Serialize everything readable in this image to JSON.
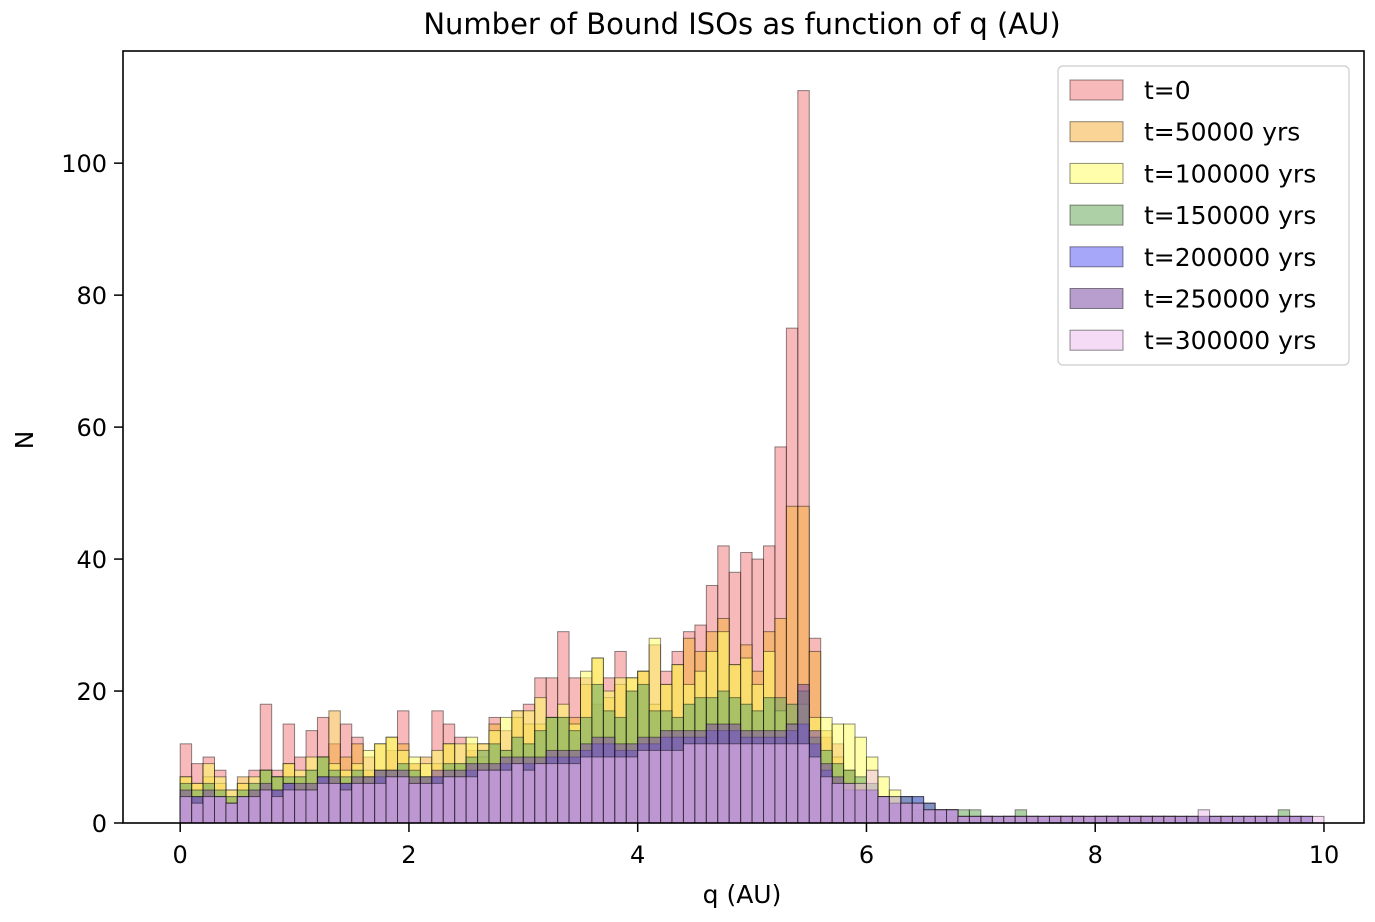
{
  "chart_data": {
    "type": "bar",
    "title": "Number of Bound ISOs as function of q (AU)",
    "xlabel": "q (AU)",
    "ylabel": "N",
    "xlim": [
      -0.5,
      10.35
    ],
    "ylim": [
      0,
      117
    ],
    "xticks": [
      0,
      2,
      4,
      6,
      8,
      10
    ],
    "yticks": [
      0,
      20,
      40,
      60,
      80,
      100
    ],
    "grid": false,
    "legend_position": "top-right",
    "bin_start": 0,
    "bin_width": 0.1,
    "series": [
      {
        "name": "t=0",
        "color": "#f08080",
        "values": [
          12,
          9,
          10,
          8,
          5,
          6,
          8,
          18,
          8,
          15,
          10,
          14,
          16,
          12,
          15,
          13,
          10,
          8,
          11,
          17,
          9,
          7,
          17,
          15,
          13,
          11,
          12,
          16,
          14,
          17,
          18,
          22,
          22,
          29,
          22,
          22,
          18,
          22,
          26,
          20,
          23,
          27,
          23,
          26,
          29,
          30,
          36,
          42,
          38,
          41,
          40,
          42,
          57,
          75,
          111,
          28,
          13,
          12,
          8,
          6,
          5,
          4,
          3,
          3,
          2,
          2,
          1,
          1,
          1,
          1,
          1,
          0,
          1,
          1,
          1,
          0,
          1,
          1,
          1,
          0,
          1,
          1,
          1,
          1,
          1,
          1,
          1,
          0,
          0,
          0,
          0,
          0,
          0,
          0,
          0,
          0,
          0,
          0,
          0,
          0
        ]
      },
      {
        "name": "t=50000 yrs",
        "color": "#f5b041",
        "values": [
          7,
          6,
          7,
          6,
          4,
          7,
          5,
          8,
          7,
          9,
          7,
          8,
          10,
          17,
          10,
          12,
          8,
          12,
          13,
          12,
          9,
          10,
          9,
          12,
          9,
          12,
          10,
          15,
          11,
          16,
          15,
          15,
          16,
          16,
          16,
          21,
          25,
          19,
          21,
          22,
          23,
          18,
          21,
          24,
          28,
          26,
          29,
          31,
          24,
          27,
          23,
          29,
          31,
          48,
          48,
          26,
          14,
          10,
          8,
          6,
          5,
          4,
          3,
          3,
          2,
          2,
          1,
          1,
          1,
          1,
          1,
          0,
          1,
          1,
          1,
          0,
          1,
          1,
          1,
          0,
          1,
          1,
          1,
          1,
          1,
          1,
          1,
          0,
          0,
          0,
          0,
          0,
          0,
          0,
          0,
          0,
          0,
          0,
          0,
          0
        ]
      },
      {
        "name": "t=100000 yrs",
        "color": "#ffff66",
        "values": [
          7,
          6,
          9,
          7,
          5,
          6,
          7,
          8,
          7,
          9,
          8,
          10,
          10,
          9,
          8,
          9,
          11,
          12,
          13,
          11,
          10,
          9,
          11,
          12,
          12,
          13,
          12,
          14,
          16,
          17,
          17,
          19,
          16,
          18,
          15,
          23,
          25,
          20,
          22,
          22,
          23,
          28,
          21,
          24,
          21,
          23,
          26,
          29,
          24,
          25,
          21,
          26,
          17,
          15,
          18,
          16,
          16,
          15,
          15,
          13,
          10,
          7,
          5,
          4,
          3,
          3,
          2,
          2,
          1,
          1,
          1,
          1,
          1,
          1,
          1,
          1,
          1,
          1,
          1,
          1,
          1,
          1,
          1,
          1,
          1,
          1,
          1,
          1,
          1,
          1,
          1,
          1,
          1,
          1,
          1,
          1,
          1,
          1,
          0,
          0
        ]
      },
      {
        "name": "t=150000 yrs",
        "color": "#6aaa5e",
        "values": [
          6,
          5,
          6,
          5,
          4,
          5,
          6,
          8,
          7,
          7,
          7,
          8,
          10,
          8,
          7,
          8,
          7,
          8,
          8,
          9,
          8,
          7,
          7,
          9,
          9,
          10,
          11,
          12,
          11,
          13,
          12,
          14,
          16,
          16,
          14,
          16,
          21,
          17,
          16,
          20,
          21,
          17,
          17,
          16,
          18,
          19,
          19,
          20,
          19,
          18,
          17,
          19,
          19,
          18,
          20,
          13,
          11,
          9,
          8,
          7,
          6,
          4,
          4,
          4,
          4,
          3,
          2,
          2,
          2,
          2,
          1,
          1,
          1,
          2,
          1,
          1,
          1,
          1,
          1,
          1,
          1,
          1,
          1,
          1,
          1,
          1,
          1,
          1,
          1,
          1,
          1,
          1,
          1,
          1,
          1,
          1,
          2,
          1,
          1,
          0
        ]
      },
      {
        "name": "t=200000 yrs",
        "color": "#5f5ff5",
        "values": [
          4,
          4,
          4,
          4,
          3,
          4,
          4,
          5,
          5,
          6,
          5,
          5,
          7,
          6,
          6,
          6,
          6,
          7,
          7,
          7,
          6,
          6,
          7,
          7,
          7,
          8,
          8,
          8,
          9,
          9,
          9,
          9,
          10,
          10,
          10,
          11,
          12,
          12,
          11,
          11,
          12,
          12,
          13,
          13,
          13,
          13,
          14,
          14,
          14,
          13,
          13,
          13,
          13,
          14,
          15,
          12,
          8,
          6,
          5,
          5,
          5,
          4,
          3,
          4,
          4,
          3,
          2,
          2,
          1,
          1,
          1,
          1,
          1,
          1,
          1,
          1,
          1,
          1,
          1,
          1,
          1,
          1,
          1,
          1,
          1,
          1,
          1,
          1,
          1,
          1,
          1,
          1,
          1,
          1,
          1,
          1,
          1,
          1,
          1,
          0
        ]
      },
      {
        "name": "t=250000 yrs",
        "color": "#7b4fa8",
        "values": [
          5,
          4,
          5,
          4,
          3,
          4,
          5,
          6,
          5,
          6,
          6,
          6,
          7,
          7,
          6,
          7,
          7,
          8,
          8,
          8,
          7,
          7,
          8,
          8,
          8,
          9,
          9,
          9,
          10,
          10,
          10,
          10,
          11,
          11,
          11,
          12,
          13,
          13,
          12,
          12,
          13,
          13,
          14,
          14,
          14,
          14,
          15,
          15,
          15,
          14,
          14,
          14,
          14,
          15,
          21,
          14,
          9,
          7,
          6,
          5,
          5,
          4,
          3,
          3,
          3,
          2,
          2,
          2,
          1,
          1,
          1,
          1,
          1,
          1,
          1,
          1,
          1,
          1,
          1,
          1,
          1,
          1,
          1,
          1,
          1,
          1,
          1,
          1,
          1,
          1,
          1,
          1,
          1,
          1,
          1,
          1,
          1,
          1,
          1,
          0
        ]
      },
      {
        "name": "t=300000 yrs",
        "color": "#eebef0",
        "values": [
          4,
          3,
          4,
          4,
          3,
          4,
          4,
          5,
          4,
          5,
          5,
          5,
          6,
          6,
          5,
          6,
          6,
          6,
          7,
          7,
          6,
          6,
          6,
          7,
          7,
          7,
          8,
          8,
          8,
          9,
          8,
          9,
          9,
          9,
          9,
          10,
          10,
          10,
          10,
          10,
          11,
          11,
          11,
          11,
          12,
          12,
          12,
          12,
          12,
          12,
          12,
          12,
          12,
          12,
          12,
          10,
          7,
          6,
          6,
          6,
          8,
          4,
          4,
          3,
          3,
          2,
          2,
          2,
          1,
          1,
          1,
          1,
          1,
          1,
          1,
          1,
          1,
          1,
          1,
          1,
          1,
          1,
          1,
          1,
          1,
          1,
          1,
          1,
          1,
          2,
          1,
          1,
          1,
          1,
          1,
          1,
          1,
          1,
          1,
          1
        ]
      }
    ]
  }
}
